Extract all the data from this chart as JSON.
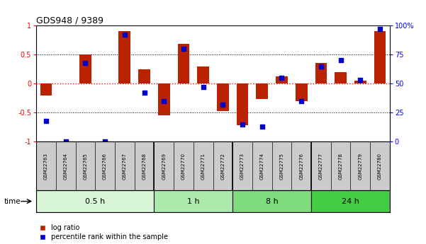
{
  "title": "GDS948 / 9389",
  "samples": [
    "GSM22763",
    "GSM22764",
    "GSM22765",
    "GSM22766",
    "GSM22767",
    "GSM22768",
    "GSM22769",
    "GSM22770",
    "GSM22771",
    "GSM22772",
    "GSM22773",
    "GSM22774",
    "GSM22775",
    "GSM22776",
    "GSM22777",
    "GSM22778",
    "GSM22779",
    "GSM22780"
  ],
  "log_ratio": [
    -0.2,
    0.0,
    0.5,
    0.0,
    0.9,
    0.25,
    -0.55,
    0.68,
    0.3,
    -0.48,
    -0.72,
    -0.27,
    0.12,
    -0.3,
    0.35,
    0.2,
    0.05,
    0.9
  ],
  "percentile": [
    0.18,
    0.0,
    0.68,
    0.0,
    0.92,
    0.42,
    0.35,
    0.8,
    0.47,
    0.32,
    0.15,
    0.13,
    0.55,
    0.35,
    0.65,
    0.7,
    0.53,
    0.97
  ],
  "groups": [
    {
      "label": "0.5 h",
      "start": 0,
      "end": 6,
      "color": "#d8f5d8"
    },
    {
      "label": "1 h",
      "start": 6,
      "end": 10,
      "color": "#aeeaae"
    },
    {
      "label": "8 h",
      "start": 10,
      "end": 14,
      "color": "#7ddd7d"
    },
    {
      "label": "24 h",
      "start": 14,
      "end": 18,
      "color": "#44cc44"
    }
  ],
  "bar_color": "#bb2200",
  "dot_color": "#0000cc",
  "ylim": [
    -1,
    1
  ],
  "y2lim": [
    0,
    100
  ],
  "yticks": [
    -1,
    -0.5,
    0,
    0.5,
    1
  ],
  "ytick_labels": [
    "-1",
    "-0.5",
    "0",
    "0.5",
    "1"
  ],
  "y2ticks": [
    0,
    25,
    50,
    75,
    100
  ],
  "y2tick_labels": [
    "0",
    "25",
    "50",
    "75",
    "100%"
  ],
  "background_color": "#ffffff",
  "label_bg": "#cccccc"
}
